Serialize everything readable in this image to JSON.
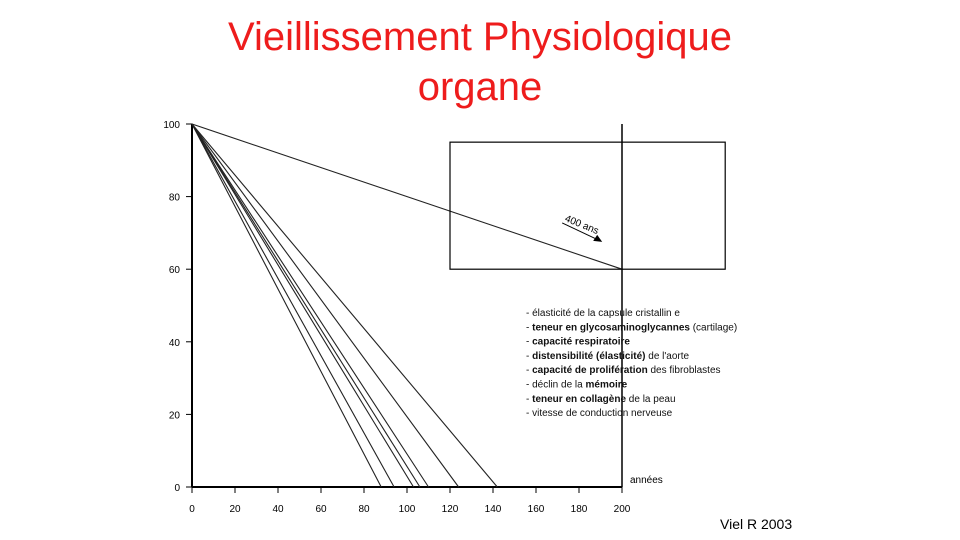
{
  "slide": {
    "title_line1": "Vieillissement Physiologique",
    "title_line2": "organe",
    "credit": "Viel R 2003"
  },
  "chart_data": {
    "type": "line",
    "title": "Vieillissement Physiologique organe",
    "xlabel": "années",
    "ylabel": "",
    "xlim": [
      0,
      200
    ],
    "ylim": [
      0,
      100
    ],
    "x_ticks": [
      0,
      20,
      40,
      60,
      80,
      100,
      120,
      140,
      160,
      180,
      200
    ],
    "y_ticks": [
      0,
      20,
      40,
      60,
      80,
      100
    ],
    "grid": false,
    "series": [
      {
        "points": [
          [
            0,
            100
          ],
          [
            88,
            0
          ]
        ]
      },
      {
        "points": [
          [
            0,
            100
          ],
          [
            94,
            0
          ]
        ]
      },
      {
        "points": [
          [
            0,
            100
          ],
          [
            103,
            0
          ]
        ]
      },
      {
        "points": [
          [
            0,
            100
          ],
          [
            106,
            0
          ]
        ]
      },
      {
        "points": [
          [
            0,
            100
          ],
          [
            110,
            0
          ]
        ]
      },
      {
        "points": [
          [
            0,
            100
          ],
          [
            124,
            0
          ]
        ]
      },
      {
        "points": [
          [
            0,
            100
          ],
          [
            142,
            0
          ]
        ]
      },
      {
        "points": [
          [
            0,
            100
          ],
          [
            200,
            60
          ]
        ]
      }
    ],
    "inset_box": {
      "x": [
        120,
        248
      ],
      "y": [
        60,
        95
      ]
    },
    "annotation": {
      "text": "400 ans",
      "x": 188,
      "y": 70
    },
    "legend": {
      "placement": "bottom-right",
      "entries": [
        {
          "prefix": "- ",
          "bold": "",
          "text": "élasticité de la capsule cristallin e"
        },
        {
          "prefix": "- ",
          "bold": "teneur en glycosaminoglycannes",
          "text": " (cartilage)"
        },
        {
          "prefix": "- ",
          "bold": "capacité respiratoire",
          "text": ""
        },
        {
          "prefix": "- ",
          "bold": "distensibilité (élasticité)",
          "text": " de l'aorte"
        },
        {
          "prefix": "- ",
          "bold": "capacité de prolifération",
          "text": " des fibroblastes"
        },
        {
          "prefix": "- ",
          "bold": "",
          "text": "déclin de la ",
          "bold_after": "mémoire"
        },
        {
          "prefix": "- ",
          "bold": "teneur en collagène",
          "text": " de la peau"
        },
        {
          "prefix": "- ",
          "bold": "",
          "text": "vitesse de conduction nerveuse"
        }
      ]
    }
  }
}
